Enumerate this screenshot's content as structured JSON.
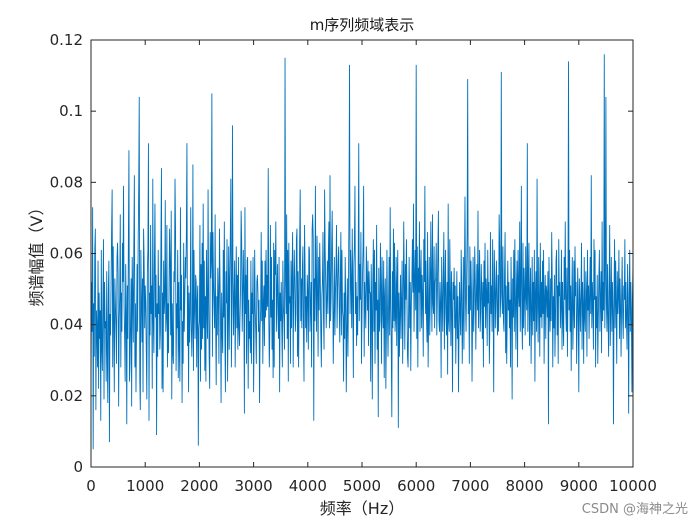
{
  "chart_data": {
    "type": "line",
    "title": "m序列频域表示",
    "xlabel": "频率（Hz）",
    "ylabel": "频谱幅值（V）",
    "xlim": [
      0,
      10000
    ],
    "ylim": [
      0,
      0.12
    ],
    "x_ticks": [
      0,
      1000,
      2000,
      3000,
      4000,
      5000,
      6000,
      7000,
      8000,
      9000,
      10000
    ],
    "y_ticks": [
      0,
      0.02,
      0.04,
      0.06,
      0.08,
      0.1,
      0.12
    ],
    "grid": false,
    "legend": "none",
    "series": [
      {
        "color": "#0072BD",
        "x_start": 0,
        "x_step": 10,
        "values": [
          0.024,
          0.052,
          0.038,
          0.073,
          0.005,
          0.046,
          0.031,
          0.061,
          0.067,
          0.016,
          0.044,
          0.039,
          0.028,
          0.058,
          0.022,
          0.049,
          0.036,
          0.044,
          0.013,
          0.061,
          0.033,
          0.027,
          0.047,
          0.064,
          0.019,
          0.052,
          0.039,
          0.041,
          0.024,
          0.055,
          0.032,
          0.018,
          0.049,
          0.058,
          0.007,
          0.043,
          0.037,
          0.051,
          0.066,
          0.078,
          0.028,
          0.062,
          0.041,
          0.021,
          0.053,
          0.046,
          0.039,
          0.029,
          0.059,
          0.063,
          0.054,
          0.017,
          0.041,
          0.048,
          0.071,
          0.028,
          0.049,
          0.038,
          0.063,
          0.052,
          0.079,
          0.046,
          0.037,
          0.024,
          0.057,
          0.044,
          0.012,
          0.051,
          0.036,
          0.064,
          0.089,
          0.024,
          0.029,
          0.041,
          0.053,
          0.017,
          0.059,
          0.048,
          0.035,
          0.062,
          0.082,
          0.028,
          0.046,
          0.021,
          0.039,
          0.057,
          0.038,
          0.062,
          0.078,
          0.104,
          0.025,
          0.016,
          0.061,
          0.047,
          0.035,
          0.053,
          0.021,
          0.067,
          0.058,
          0.039,
          0.051,
          0.046,
          0.033,
          0.019,
          0.055,
          0.061,
          0.091,
          0.013,
          0.049,
          0.037,
          0.068,
          0.043,
          0.051,
          0.022,
          0.081,
          0.041,
          0.032,
          0.057,
          0.074,
          0.042,
          0.054,
          0.009,
          0.046,
          0.031,
          0.061,
          0.043,
          0.051,
          0.033,
          0.038,
          0.063,
          0.084,
          0.022,
          0.049,
          0.021,
          0.058,
          0.043,
          0.047,
          0.075,
          0.038,
          0.042,
          0.068,
          0.028,
          0.046,
          0.032,
          0.051,
          0.067,
          0.057,
          0.037,
          0.072,
          0.019,
          0.046,
          0.032,
          0.029,
          0.055,
          0.052,
          0.081,
          0.066,
          0.027,
          0.046,
          0.039,
          0.061,
          0.025,
          0.052,
          0.033,
          0.024,
          0.073,
          0.044,
          0.054,
          0.018,
          0.041,
          0.029,
          0.063,
          0.038,
          0.047,
          0.059,
          0.053,
          0.066,
          0.091,
          0.034,
          0.051,
          0.021,
          0.049,
          0.035,
          0.043,
          0.073,
          0.041,
          0.031,
          0.039,
          0.085,
          0.027,
          0.061,
          0.045,
          0.036,
          0.054,
          0.052,
          0.028,
          0.047,
          0.051,
          0.006,
          0.039,
          0.041,
          0.068,
          0.024,
          0.057,
          0.033,
          0.063,
          0.036,
          0.074,
          0.039,
          0.058,
          0.027,
          0.048,
          0.024,
          0.061,
          0.044,
          0.036,
          0.078,
          0.047,
          0.031,
          0.022,
          0.066,
          0.053,
          0.058,
          0.105,
          0.031,
          0.066,
          0.052,
          0.045,
          0.039,
          0.071,
          0.041,
          0.023,
          0.048,
          0.037,
          0.056,
          0.048,
          0.029,
          0.067,
          0.053,
          0.041,
          0.018,
          0.049,
          0.038,
          0.032,
          0.061,
          0.042,
          0.069,
          0.037,
          0.021,
          0.055,
          0.046,
          0.064,
          0.024,
          0.041,
          0.062,
          0.033,
          0.053,
          0.064,
          0.081,
          0.028,
          0.043,
          0.096,
          0.052,
          0.037,
          0.049,
          0.058,
          0.028,
          0.046,
          0.062,
          0.039,
          0.054,
          0.033,
          0.059,
          0.039,
          0.034,
          0.043,
          0.051,
          0.072,
          0.063,
          0.038,
          0.048,
          0.061,
          0.049,
          0.015,
          0.073,
          0.043,
          0.054,
          0.029,
          0.058,
          0.059,
          0.022,
          0.047,
          0.036,
          0.041,
          0.032,
          0.058,
          0.029,
          0.049,
          0.043,
          0.059,
          0.021,
          0.038,
          0.061,
          0.044,
          0.038,
          0.029,
          0.052,
          0.054,
          0.049,
          0.038,
          0.047,
          0.018,
          0.039,
          0.044,
          0.066,
          0.041,
          0.058,
          0.029,
          0.046,
          0.051,
          0.034,
          0.058,
          0.042,
          0.061,
          0.044,
          0.054,
          0.045,
          0.084,
          0.042,
          0.028,
          0.039,
          0.068,
          0.042,
          0.059,
          0.033,
          0.047,
          0.025,
          0.063,
          0.028,
          0.061,
          0.054,
          0.069,
          0.038,
          0.049,
          0.057,
          0.042,
          0.036,
          0.059,
          0.021,
          0.049,
          0.041,
          0.052,
          0.039,
          0.028,
          0.058,
          0.045,
          0.041,
          0.033,
          0.115,
          0.052,
          0.043,
          0.071,
          0.036,
          0.061,
          0.024,
          0.063,
          0.046,
          0.048,
          0.029,
          0.058,
          0.039,
          0.055,
          0.066,
          0.028,
          0.049,
          0.061,
          0.052,
          0.038,
          0.043,
          0.064,
          0.067,
          0.031,
          0.055,
          0.028,
          0.048,
          0.064,
          0.078,
          0.041,
          0.053,
          0.039,
          0.056,
          0.062,
          0.037,
          0.024,
          0.068,
          0.055,
          0.039,
          0.048,
          0.035,
          0.054,
          0.049,
          0.033,
          0.062,
          0.061,
          0.038,
          0.045,
          0.052,
          0.028,
          0.067,
          0.071,
          0.064,
          0.013,
          0.053,
          0.041,
          0.079,
          0.051,
          0.038,
          0.065,
          0.049,
          0.031,
          0.059,
          0.044,
          0.063,
          0.053,
          0.038,
          0.028,
          0.048,
          0.052,
          0.066,
          0.042,
          0.033,
          0.078,
          0.061,
          0.052,
          0.039,
          0.047,
          0.058,
          0.043,
          0.061,
          0.069,
          0.039,
          0.082,
          0.041,
          0.048,
          0.062,
          0.072,
          0.051,
          0.029,
          0.043,
          0.059,
          0.037,
          0.049,
          0.055,
          0.068,
          0.039,
          0.049,
          0.058,
          0.062,
          0.045,
          0.035,
          0.052,
          0.066,
          0.037,
          0.061,
          0.044,
          0.042,
          0.024,
          0.049,
          0.036,
          0.059,
          0.046,
          0.021,
          0.039,
          0.053,
          0.031,
          0.049,
          0.073,
          0.113,
          0.043,
          0.061,
          0.052,
          0.039,
          0.067,
          0.048,
          0.025,
          0.057,
          0.062,
          0.079,
          0.043,
          0.052,
          0.034,
          0.048,
          0.037,
          0.058,
          0.091,
          0.041,
          0.057,
          0.047,
          0.066,
          0.029,
          0.043,
          0.054,
          0.062,
          0.079,
          0.031,
          0.052,
          0.046,
          0.039,
          0.062,
          0.053,
          0.044,
          0.058,
          0.034,
          0.055,
          0.049,
          0.049,
          0.024,
          0.057,
          0.043,
          0.019,
          0.053,
          0.064,
          0.038,
          0.061,
          0.029,
          0.052,
          0.044,
          0.068,
          0.033,
          0.047,
          0.014,
          0.056,
          0.038,
          0.041,
          0.063,
          0.051,
          0.029,
          0.059,
          0.045,
          0.039,
          0.058,
          0.025,
          0.048,
          0.053,
          0.022,
          0.039,
          0.061,
          0.043,
          0.031,
          0.045,
          0.059,
          0.037,
          0.073,
          0.046,
          0.034,
          0.014,
          0.055,
          0.039,
          0.067,
          0.041,
          0.063,
          0.038,
          0.042,
          0.059,
          0.034,
          0.052,
          0.061,
          0.011,
          0.049,
          0.031,
          0.043,
          0.054,
          0.036,
          0.047,
          0.058,
          0.029,
          0.044,
          0.069,
          0.052,
          0.033,
          0.057,
          0.047,
          0.064,
          0.046,
          0.031,
          0.028,
          0.043,
          0.059,
          0.039,
          0.052,
          0.027,
          0.046,
          0.052,
          0.064,
          0.049,
          0.074,
          0.038,
          0.052,
          0.061,
          0.044,
          0.113,
          0.036,
          0.062,
          0.028,
          0.056,
          0.049,
          0.069,
          0.038,
          0.053,
          0.061,
          0.039,
          0.054,
          0.047,
          0.031,
          0.064,
          0.052,
          0.079,
          0.043,
          0.058,
          0.042,
          0.035,
          0.066,
          0.028,
          0.042,
          0.059,
          0.037,
          0.048,
          0.069,
          0.052,
          0.038,
          0.071,
          0.046,
          0.043,
          0.062,
          0.039,
          0.052,
          0.053,
          0.063,
          0.037,
          0.048,
          0.061,
          0.072,
          0.041,
          0.038,
          0.052,
          0.046,
          0.025,
          0.059,
          0.047,
          0.038,
          0.054,
          0.066,
          0.033,
          0.049,
          0.061,
          0.043,
          0.037,
          0.052,
          0.026,
          0.074,
          0.041,
          0.038,
          0.064,
          0.049,
          0.034,
          0.055,
          0.044,
          0.021,
          0.052,
          0.047,
          0.056,
          0.039,
          0.051,
          0.029,
          0.042,
          0.055,
          0.036,
          0.048,
          0.021,
          0.038,
          0.052,
          0.043,
          0.037,
          0.061,
          0.049,
          0.029,
          0.042,
          0.059,
          0.033,
          0.054,
          0.076,
          0.047,
          0.038,
          0.052,
          0.066,
          0.109,
          0.043,
          0.051,
          0.029,
          0.062,
          0.044,
          0.058,
          0.049,
          0.024,
          0.041,
          0.059,
          0.038,
          0.046,
          0.062,
          0.052,
          0.033,
          0.048,
          0.057,
          0.044,
          0.072,
          0.039,
          0.053,
          0.061,
          0.038,
          0.044,
          0.057,
          0.049,
          0.036,
          0.052,
          0.028,
          0.058,
          0.045,
          0.063,
          0.039,
          0.053,
          0.049,
          0.034,
          0.061,
          0.046,
          0.052,
          0.029,
          0.041,
          0.066,
          0.043,
          0.051,
          0.038,
          0.064,
          0.047,
          0.021,
          0.061,
          0.053,
          0.039,
          0.049,
          0.058,
          0.044,
          0.037,
          0.054,
          0.038,
          0.071,
          0.062,
          0.042,
          0.048,
          0.111,
          0.049,
          0.043,
          0.062,
          0.041,
          0.038,
          0.054,
          0.066,
          0.032,
          0.051,
          0.029,
          0.045,
          0.058,
          0.044,
          0.052,
          0.039,
          0.047,
          0.028,
          0.059,
          0.046,
          0.019,
          0.053,
          0.042,
          0.061,
          0.038,
          0.064,
          0.047,
          0.033,
          0.051,
          0.058,
          0.028,
          0.061,
          0.049,
          0.045,
          0.069,
          0.038,
          0.052,
          0.079,
          0.041,
          0.033,
          0.063,
          0.039,
          0.056,
          0.049,
          0.037,
          0.062,
          0.048,
          0.044,
          0.091,
          0.038,
          0.052,
          0.063,
          0.034,
          0.048,
          0.056,
          0.029,
          0.044,
          0.059,
          0.037,
          0.052,
          0.041,
          0.061,
          0.024,
          0.049,
          0.055,
          0.038,
          0.081,
          0.044,
          0.035,
          0.059,
          0.046,
          0.031,
          0.063,
          0.042,
          0.052,
          0.039,
          0.058,
          0.043,
          0.061,
          0.029,
          0.047,
          0.054,
          0.036,
          0.051,
          0.049,
          0.042,
          0.055,
          0.012,
          0.059,
          0.044,
          0.038,
          0.053,
          0.041,
          0.066,
          0.052,
          0.028,
          0.048,
          0.039,
          0.054,
          0.031,
          0.042,
          0.058,
          0.061,
          0.037,
          0.051,
          0.029,
          0.064,
          0.048,
          0.052,
          0.039,
          0.045,
          0.061,
          0.033,
          0.052,
          0.041,
          0.034,
          0.059,
          0.047,
          0.069,
          0.044,
          0.038,
          0.056,
          0.031,
          0.049,
          0.114,
          0.044,
          0.061,
          0.038,
          0.051,
          0.027,
          0.047,
          0.059,
          0.033,
          0.042,
          0.058,
          0.039,
          0.062,
          0.048,
          0.052,
          0.029,
          0.041,
          0.056,
          0.044,
          0.021,
          0.053,
          0.047,
          0.038,
          0.049,
          0.063,
          0.033,
          0.052,
          0.045,
          0.029,
          0.059,
          0.042,
          0.038,
          0.055,
          0.049,
          0.031,
          0.061,
          0.044,
          0.051,
          0.036,
          0.048,
          0.059,
          0.043,
          0.082,
          0.039,
          0.052,
          0.046,
          0.033,
          0.064,
          0.047,
          0.061,
          0.028,
          0.048,
          0.039,
          0.054,
          0.029,
          0.042,
          0.053,
          0.061,
          0.038,
          0.047,
          0.055,
          0.032,
          0.069,
          0.041,
          0.052,
          0.044,
          0.116,
          0.039,
          0.053,
          0.104,
          0.046,
          0.038,
          0.057,
          0.042,
          0.031,
          0.051,
          0.068,
          0.034,
          0.046,
          0.059,
          0.038,
          0.052,
          0.044,
          0.012,
          0.049,
          0.064,
          0.039,
          0.058,
          0.046,
          0.029,
          0.055,
          0.043,
          0.048,
          0.061,
          0.036,
          0.053,
          0.045,
          0.031,
          0.048,
          0.059,
          0.042,
          0.036,
          0.051,
          0.047,
          0.064,
          0.039,
          0.052,
          0.041,
          0.033,
          0.057,
          0.046,
          0.015,
          0.049,
          0.061,
          0.038,
          0.052,
          0.044,
          0.021,
          0.048,
          0.057,
          0.039,
          0.051,
          0.014,
          0.036,
          0.052
        ]
      }
    ]
  },
  "watermark": "CSDN @海神之光"
}
